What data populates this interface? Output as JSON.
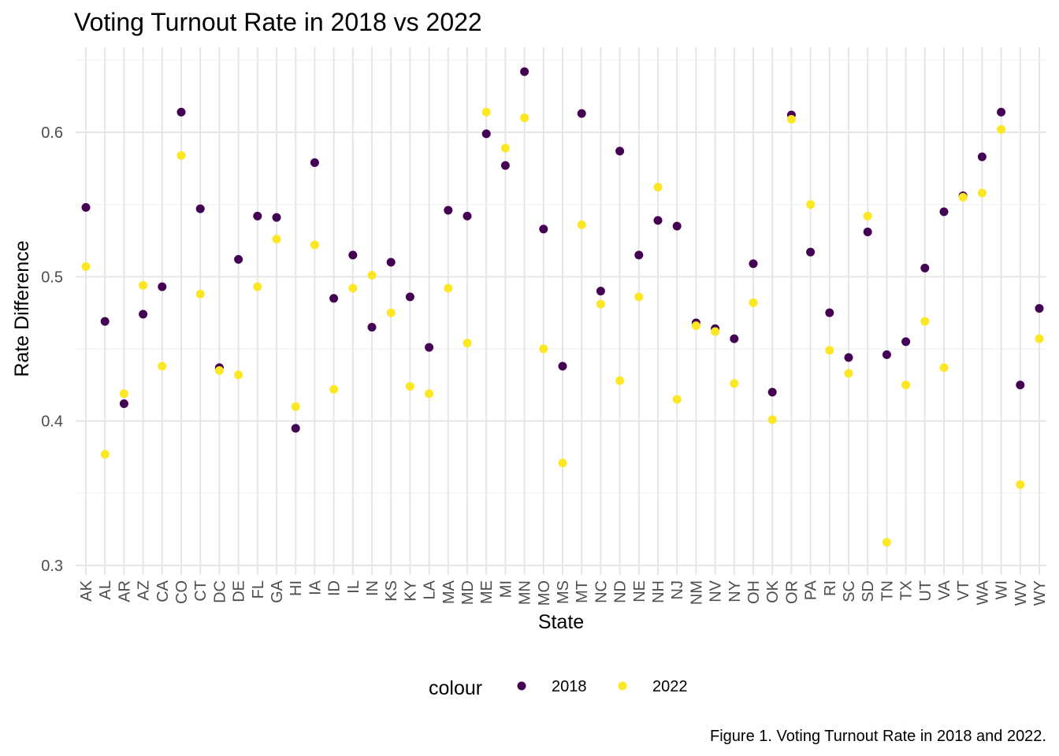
{
  "chart_data": {
    "type": "scatter",
    "title": "Voting Turnout Rate in 2018 vs 2022",
    "xlabel": "State",
    "ylabel": "Rate Difference",
    "caption": "Figure 1. Voting Turnout Rate in 2018 and 2022.",
    "legend": {
      "title": "colour",
      "position": "bottom"
    },
    "grid": true,
    "ylim": [
      0.3,
      0.66
    ],
    "yticks": [
      "0.3",
      "0.4",
      "0.5",
      "0.6"
    ],
    "categories": [
      "AK",
      "AL",
      "AR",
      "AZ",
      "CA",
      "CO",
      "CT",
      "DC",
      "DE",
      "FL",
      "GA",
      "HI",
      "IA",
      "ID",
      "IL",
      "IN",
      "KS",
      "KY",
      "LA",
      "MA",
      "MD",
      "ME",
      "MI",
      "MN",
      "MO",
      "MS",
      "MT",
      "NC",
      "ND",
      "NE",
      "NH",
      "NJ",
      "NM",
      "NV",
      "NY",
      "OH",
      "OK",
      "OR",
      "PA",
      "RI",
      "SC",
      "SD",
      "TN",
      "TX",
      "UT",
      "VA",
      "VT",
      "WA",
      "WI",
      "WV",
      "WY"
    ],
    "series": [
      {
        "name": "2018",
        "color": "#440154",
        "values": [
          0.548,
          0.469,
          0.412,
          0.474,
          0.493,
          0.614,
          0.547,
          0.437,
          0.512,
          0.542,
          0.541,
          0.395,
          0.579,
          0.485,
          0.515,
          0.465,
          0.51,
          0.486,
          0.451,
          0.546,
          0.542,
          0.599,
          0.577,
          0.642,
          0.533,
          0.438,
          0.613,
          0.49,
          0.587,
          0.515,
          0.539,
          0.535,
          0.468,
          0.464,
          0.457,
          0.509,
          0.42,
          0.612,
          0.517,
          0.475,
          0.444,
          0.531,
          0.446,
          0.455,
          0.506,
          0.545,
          0.556,
          0.583,
          0.614,
          0.425,
          0.478
        ]
      },
      {
        "name": "2022",
        "color": "#fde725",
        "values": [
          0.507,
          0.377,
          0.419,
          0.494,
          0.438,
          0.584,
          0.488,
          0.435,
          0.432,
          0.493,
          0.526,
          0.41,
          0.522,
          0.422,
          0.492,
          0.501,
          0.475,
          0.424,
          0.419,
          0.492,
          0.454,
          0.614,
          0.589,
          0.61,
          0.45,
          0.371,
          0.536,
          0.481,
          0.428,
          0.486,
          0.562,
          0.415,
          0.466,
          0.462,
          0.426,
          0.482,
          0.401,
          0.609,
          0.55,
          0.449,
          0.433,
          0.542,
          0.316,
          0.425,
          0.469,
          0.437,
          0.555,
          0.558,
          0.602,
          0.356,
          0.457
        ]
      }
    ]
  }
}
